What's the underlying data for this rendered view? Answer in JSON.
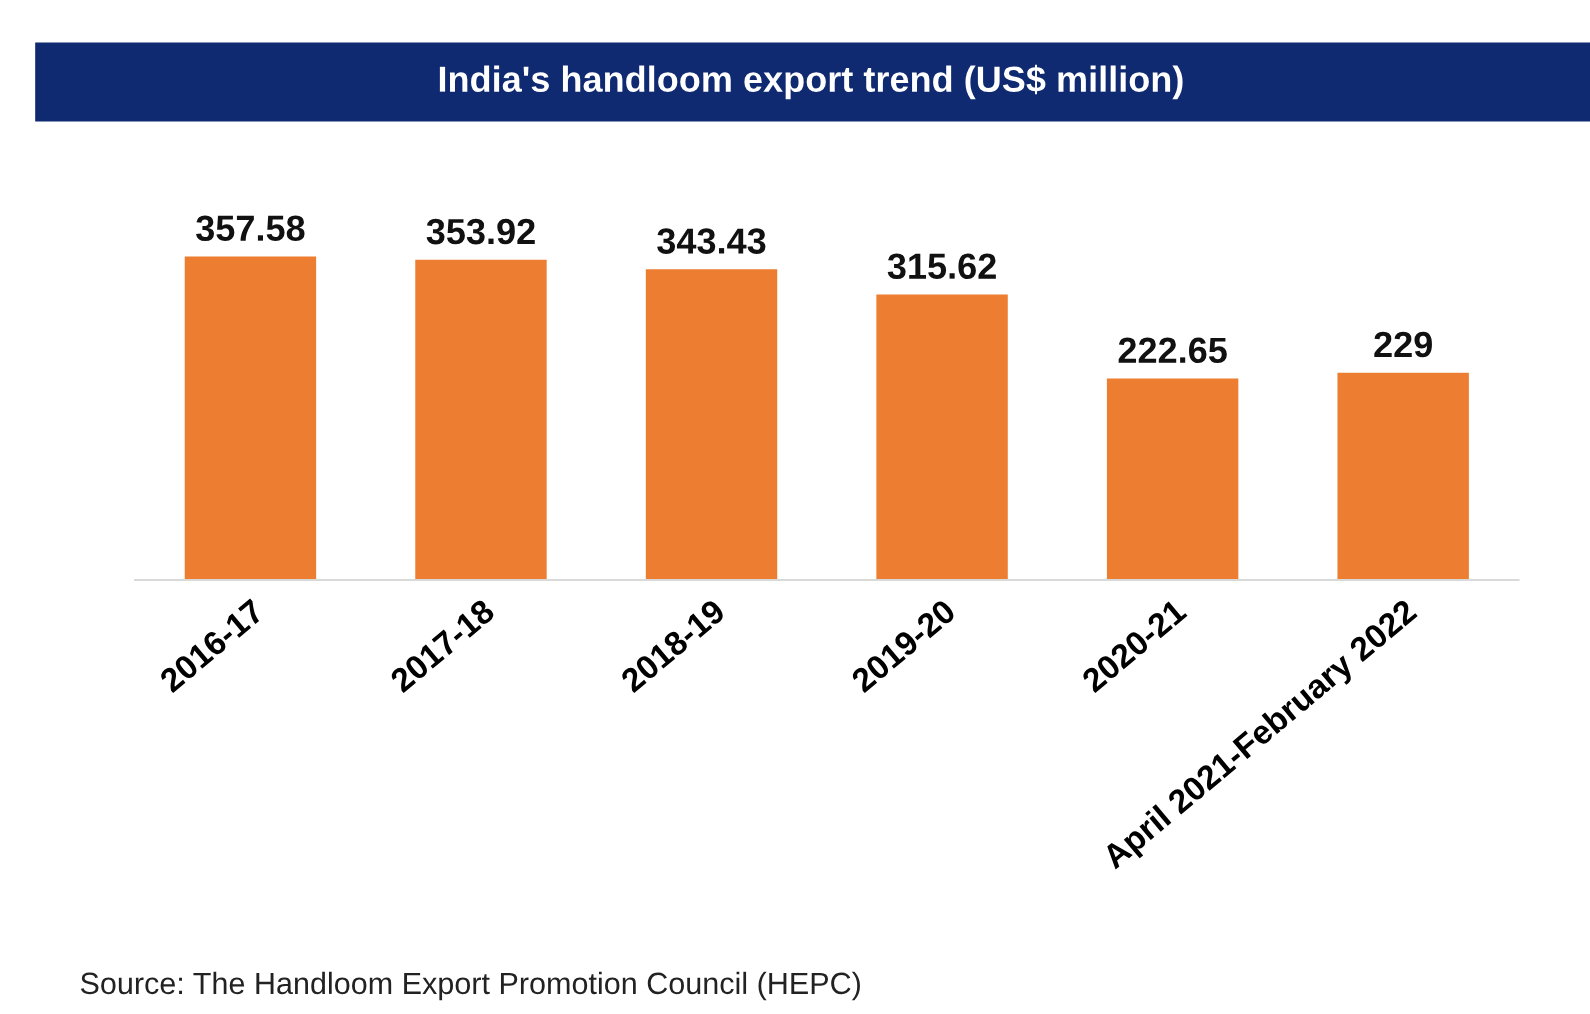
{
  "chart_data": {
    "type": "bar",
    "title": "India's handloom export trend (US$ million)",
    "categories": [
      "2016-17",
      "2017-18",
      "2018-19",
      "2019-20",
      "2020-21",
      "April 2021-February 2022"
    ],
    "values": [
      357.58,
      353.92,
      343.43,
      315.62,
      222.65,
      229
    ],
    "color": "#ed7d31",
    "data_labels": true,
    "annotations": [
      "Source: The Handloom Export Promotion Council (HEPC)"
    ]
  }
}
